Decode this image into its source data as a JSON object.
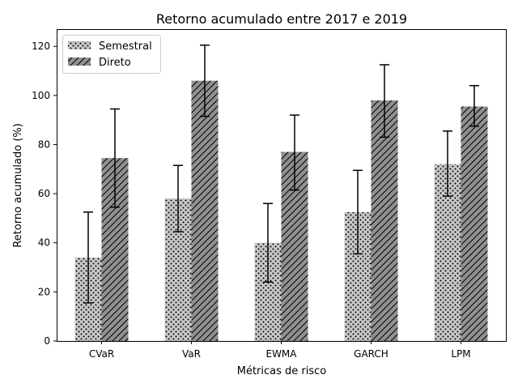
{
  "chart_data": {
    "type": "bar",
    "title": "Retorno acumulado entre 2017 e 2019",
    "xlabel": "Métricas de risco",
    "ylabel": "Retorno acumulado (%)",
    "ylim": [
      0,
      127
    ],
    "yticks": [
      0,
      20,
      40,
      60,
      80,
      100,
      120
    ],
    "grid": false,
    "legend_position": "top-left",
    "categories": [
      "CVaR",
      "VaR",
      "EWMA",
      "GARCH",
      "LPM"
    ],
    "series": [
      {
        "name": "Semestral",
        "values": [
          34,
          58,
          40,
          52.5,
          72
        ],
        "error_low": [
          15.5,
          44.5,
          24,
          35.5,
          59
        ],
        "error_high": [
          52.5,
          71.5,
          56,
          69.5,
          85.5
        ],
        "color": "#c8c8c8",
        "pattern": "dots"
      },
      {
        "name": "Direto",
        "values": [
          74.5,
          106,
          77,
          98,
          95.5
        ],
        "error_low": [
          54.5,
          91.5,
          61.5,
          83,
          87.5
        ],
        "error_high": [
          94.5,
          120.5,
          92,
          112.5,
          104
        ],
        "color": "#909090",
        "pattern": "diagonal-hatch"
      }
    ]
  }
}
